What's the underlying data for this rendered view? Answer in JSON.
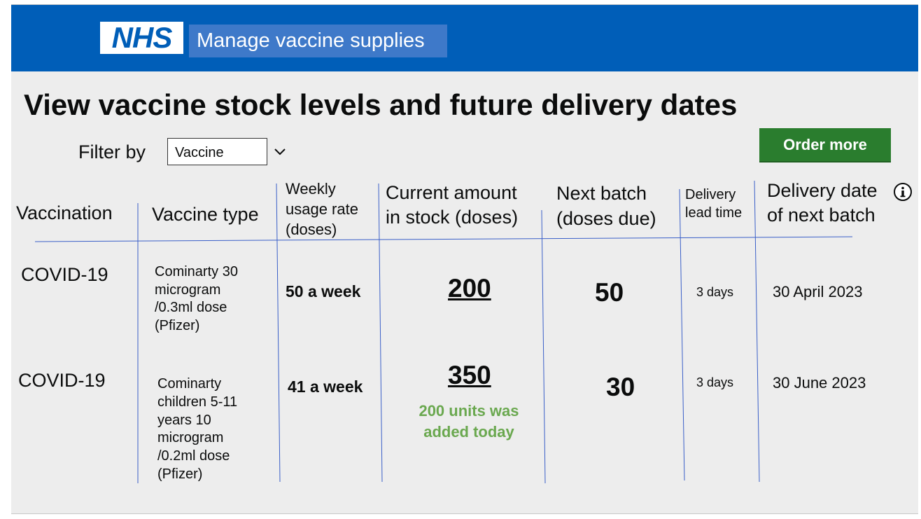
{
  "header": {
    "logo_text": "NHS",
    "service_name": "Manage vaccine supplies",
    "brand_color": "#005eb8"
  },
  "page": {
    "title": "View vaccine stock levels and future delivery dates"
  },
  "filter": {
    "label": "Filter by",
    "selected": "Vaccine"
  },
  "actions": {
    "order_more": "Order more",
    "button_color": "#2a7d2e"
  },
  "table": {
    "headers": {
      "vaccination": "Vaccination",
      "vaccine_type": "Vaccine type",
      "weekly_usage": [
        "Weekly",
        "usage rate",
        "(doses)"
      ],
      "current_stock": [
        "Current amount",
        "in stock (doses)"
      ],
      "next_batch": [
        "Next batch",
        "(doses due)"
      ],
      "lead_time": [
        "Delivery",
        "lead time"
      ],
      "delivery_date": [
        "Delivery date",
        "of next batch"
      ]
    },
    "rows": [
      {
        "vaccination": "COVID-19",
        "vaccine_type": [
          "Cominarty 30",
          "microgram",
          "/0.3ml dose",
          "(Pfizer)"
        ],
        "weekly_usage": "50 a week",
        "current_stock": "200",
        "stock_note": "",
        "next_batch": "50",
        "lead_time": "3 days",
        "delivery_date": "30 April 2023"
      },
      {
        "vaccination": "COVID-19",
        "vaccine_type": [
          "Cominarty",
          "children 5-11",
          "years 10",
          "microgram",
          "/0.2ml dose",
          "(Pfizer)"
        ],
        "weekly_usage": "41 a week",
        "current_stock": "350",
        "stock_note": [
          "200 units was",
          "added today"
        ],
        "next_batch": "30",
        "lead_time": "3 days",
        "delivery_date": "30 June 2023"
      }
    ],
    "line_color": "#3a5fc8",
    "note_color": "#6aa84f"
  },
  "icons": {
    "chevron": "chevron-down-icon",
    "info": "info-icon"
  }
}
